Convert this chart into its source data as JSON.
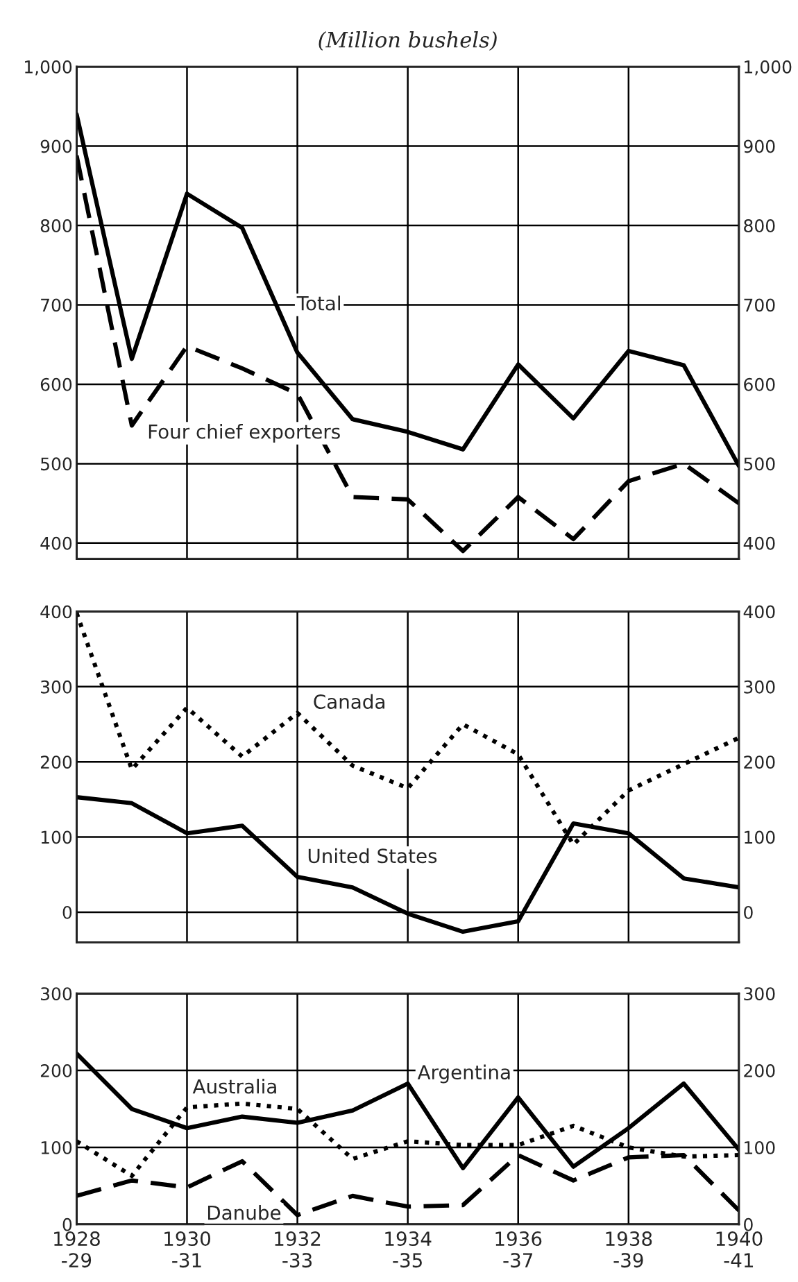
{
  "chart_data": [
    {
      "type": "line",
      "title": "(Million bushels)",
      "categories": [
        null,
        null,
        null,
        null,
        null,
        null,
        null,
        null,
        null,
        null,
        null,
        null,
        null
      ],
      "series": [
        {
          "name": "Total",
          "color": "#000000",
          "line_style": "solid",
          "values": [
            940,
            632,
            840,
            797,
            640,
            556,
            540,
            518,
            625,
            557,
            642,
            624,
            497
          ]
        },
        {
          "name": "Four chief exporters",
          "color": "#000000",
          "line_style": "dashed",
          "values": [
            888,
            548,
            648,
            620,
            588,
            458,
            455,
            390,
            458,
            405,
            478,
            500,
            450
          ]
        }
      ],
      "ylim": [
        380,
        1000
      ],
      "yticks": [
        {
          "value": 400,
          "label": "400"
        },
        500,
        600,
        700,
        800,
        900,
        {
          "value": 1000,
          "label": "1,000"
        }
      ],
      "y2lim": [
        380,
        1000
      ],
      "y2ticks": [
        {
          "value": 400,
          "label": "400"
        },
        500,
        600,
        700,
        800,
        900,
        {
          "value": 1000,
          "label": "1,000"
        }
      ],
      "grid": true,
      "tick_labels": "y"
    },
    {
      "type": "line",
      "categories": [
        null,
        null,
        null,
        null,
        null,
        null,
        null,
        null,
        null,
        null,
        null,
        null,
        null
      ],
      "series": [
        {
          "name": "Canada",
          "color": "#000000",
          "line_style": "dotted",
          "values": [
            398,
            190,
            272,
            207,
            265,
            195,
            165,
            250,
            210,
            90,
            162,
            197,
            232
          ]
        },
        {
          "name": "United States",
          "color": "#000000",
          "line_style": "solid",
          "values": [
            153,
            145,
            105,
            115,
            47,
            33,
            -2,
            -26,
            -12,
            118,
            105,
            45,
            33
          ]
        }
      ],
      "ylim": [
        -40,
        400
      ],
      "yticks": [
        0,
        100,
        200,
        300,
        400
      ],
      "y2lim": [
        -40,
        400
      ],
      "y2ticks": [
        0,
        100,
        200,
        300,
        400
      ],
      "grid": true,
      "tick_labels": "y"
    },
    {
      "type": "line",
      "categories": [
        "1928\n-29",
        null,
        "1930\n-31",
        null,
        "1932\n-33",
        null,
        "1934\n-35",
        null,
        "1936\n-37",
        null,
        "1938\n-39",
        null,
        "1940\n-41"
      ],
      "series": [
        {
          "name": "Argentina",
          "color": "#000000",
          "line_style": "solid",
          "values": [
            222,
            150,
            125,
            140,
            132,
            148,
            183,
            73,
            165,
            75,
            125,
            183,
            97
          ]
        },
        {
          "name": "Australia",
          "color": "#000000",
          "line_style": "dotted",
          "values": [
            108,
            63,
            152,
            157,
            150,
            85,
            108,
            103,
            103,
            128,
            100,
            88,
            90
          ]
        },
        {
          "name": "Danube",
          "color": "#000000",
          "line_style": "dashed",
          "values": [
            37,
            57,
            48,
            82,
            12,
            37,
            23,
            25,
            90,
            57,
            87,
            90,
            18
          ]
        }
      ],
      "ylim": [
        0,
        300
      ],
      "yticks": [
        0,
        100,
        200,
        300
      ],
      "y2lim": [
        0,
        300
      ],
      "y2ticks": [
        0,
        100,
        200,
        300
      ],
      "grid": true
    }
  ]
}
